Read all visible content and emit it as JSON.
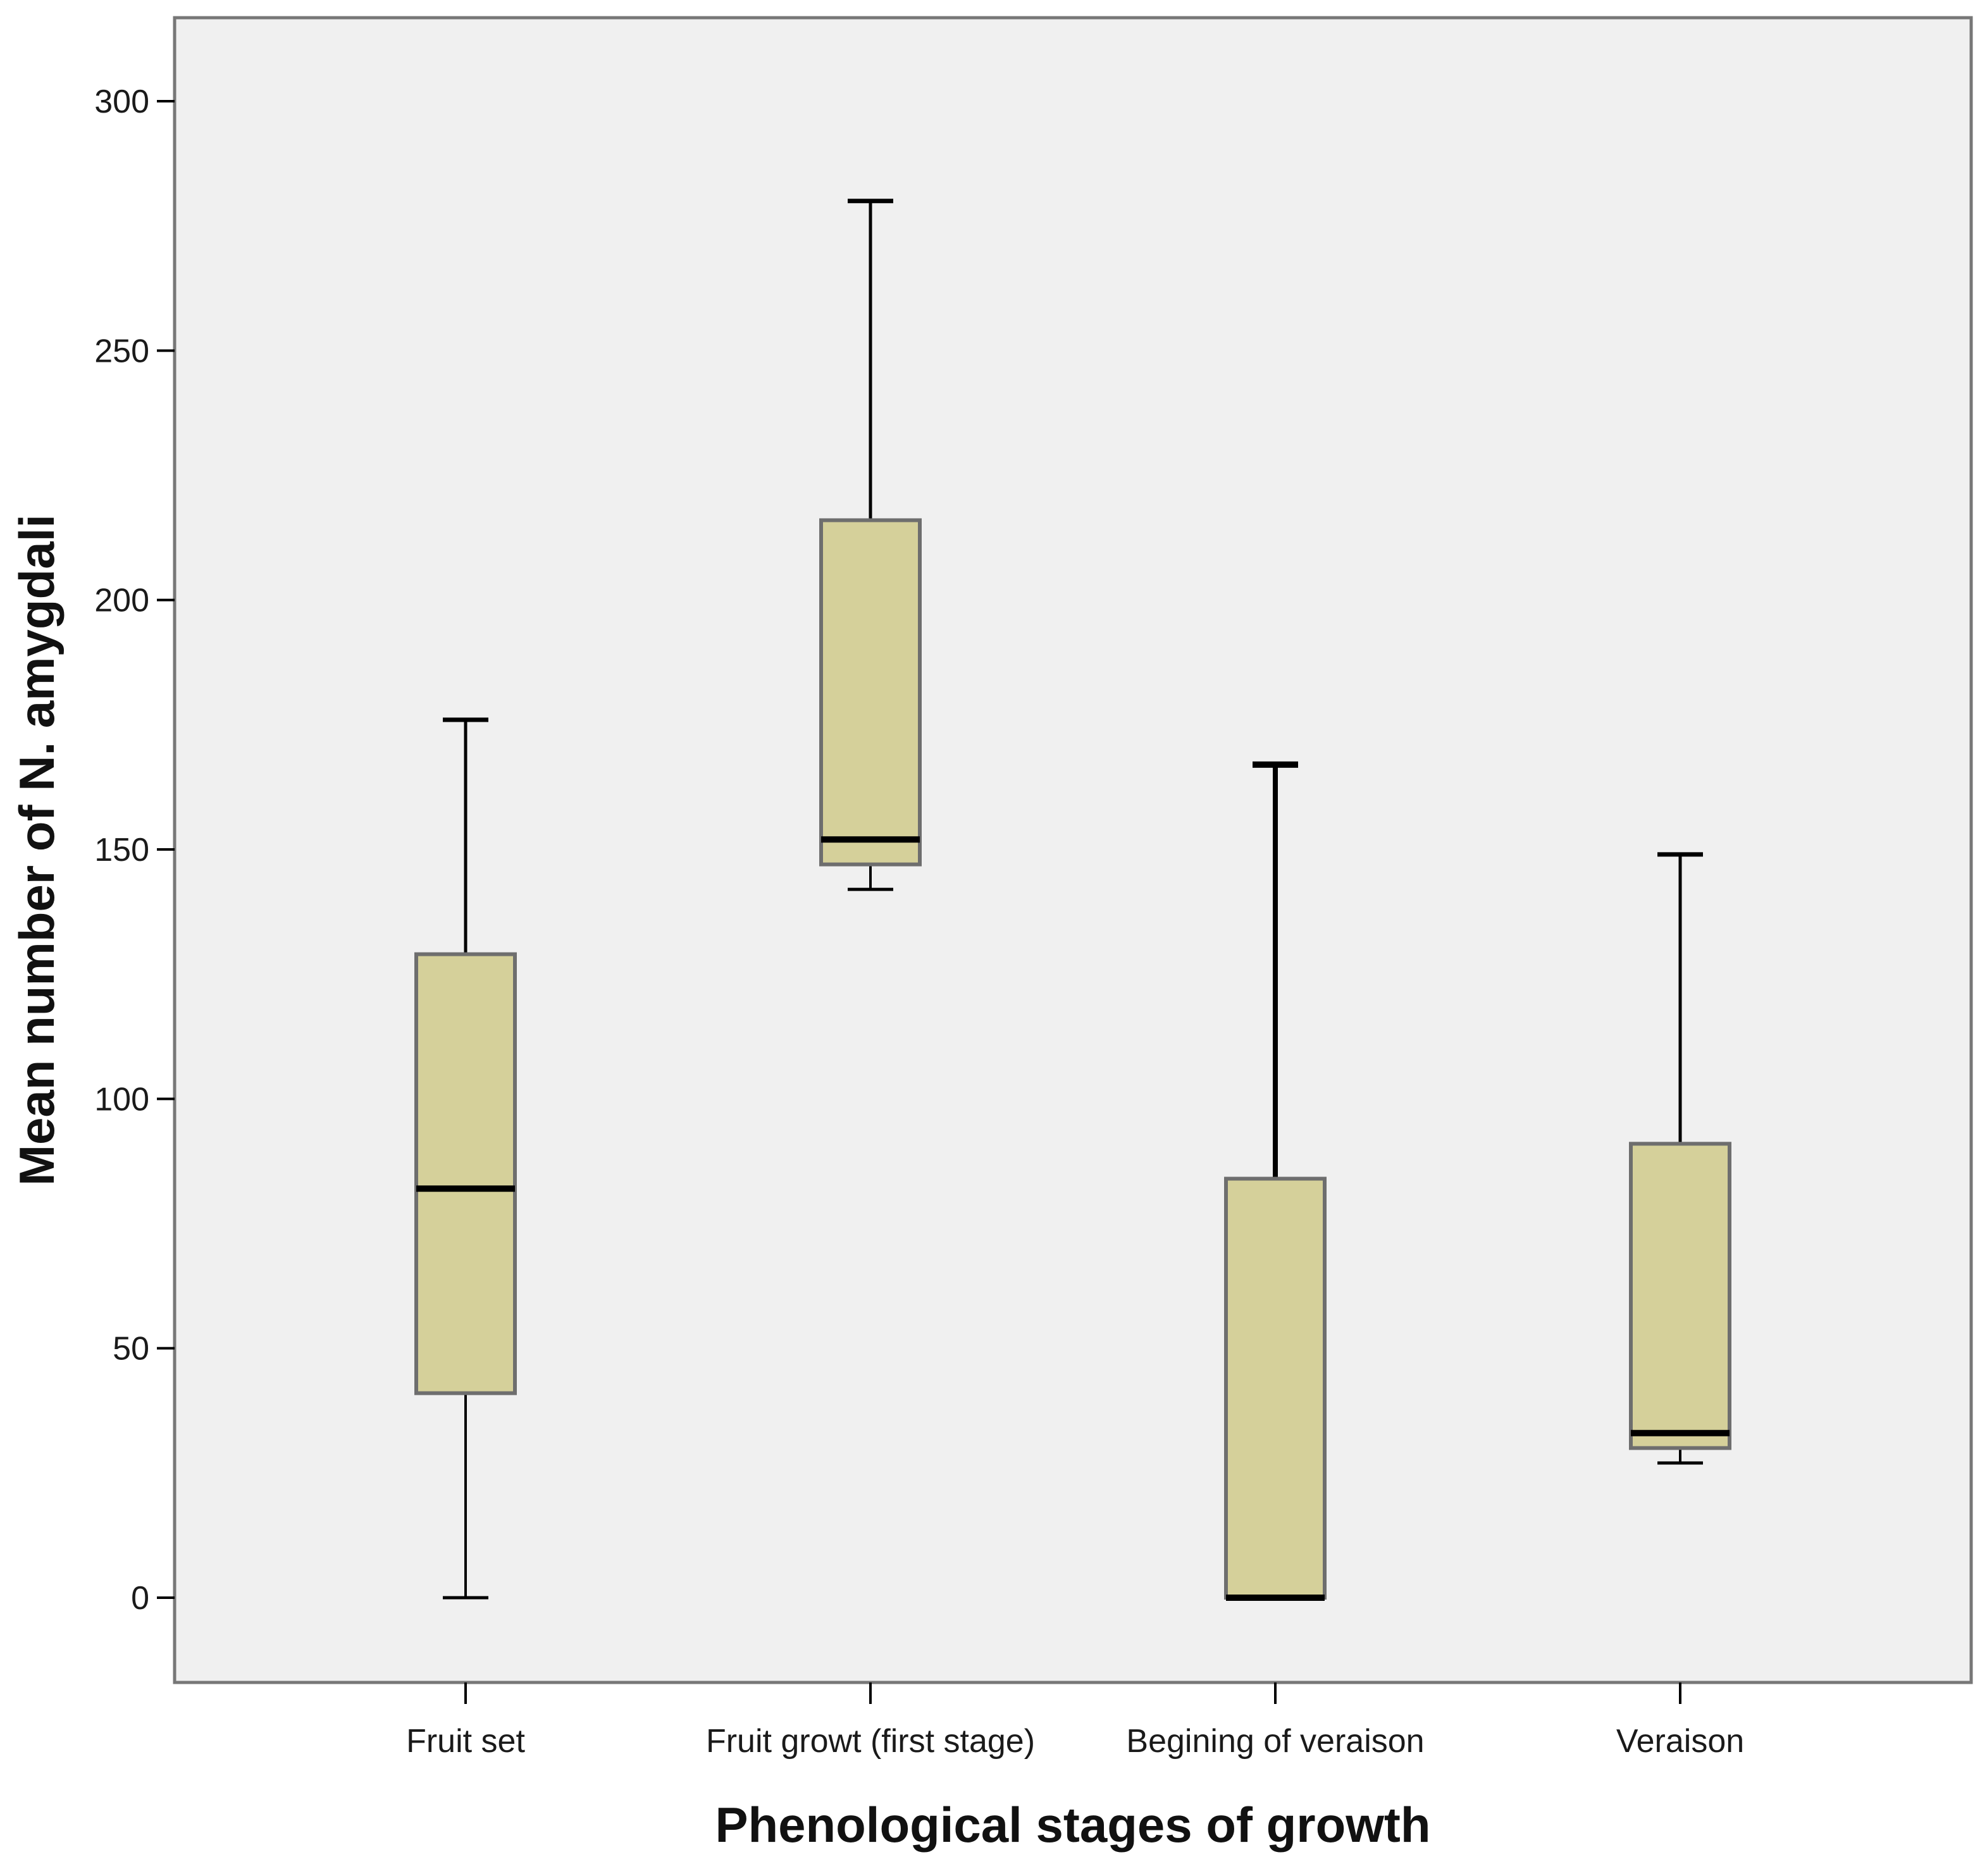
{
  "chart_data": {
    "type": "boxplot",
    "title": "",
    "xlabel": "Phenological stages of growth",
    "ylabel": "Mean number of N. amygdali",
    "ylim": [
      -17,
      317
    ],
    "yticks": [
      0,
      50,
      100,
      150,
      200,
      250,
      300
    ],
    "categories": [
      "Fruit set",
      "Fruit growt (first stage)",
      "Begining of veraison",
      "Veraison"
    ],
    "boxes": [
      {
        "category": "Fruit set",
        "whisker_low": 0,
        "q1": 41,
        "median": 82,
        "q3": 129,
        "whisker_high": 176
      },
      {
        "category": "Fruit growt (first stage)",
        "whisker_low": 142,
        "q1": 147,
        "median": 152,
        "q3": 216,
        "whisker_high": 280
      },
      {
        "category": "Begining of veraison",
        "whisker_low": 0,
        "q1": 0,
        "median": 0,
        "q3": 84,
        "whisker_high": 167
      },
      {
        "category": "Veraison",
        "whisker_low": 27,
        "q1": 30,
        "median": 33,
        "q3": 91,
        "whisker_high": 149
      }
    ],
    "grid": false,
    "legend": "none"
  },
  "colors": {
    "plot_background": "#f0f0f0",
    "box_fill": "#d5d09a",
    "box_stroke": "#6e6e6e",
    "line": "#000000",
    "frame": "#777777"
  }
}
